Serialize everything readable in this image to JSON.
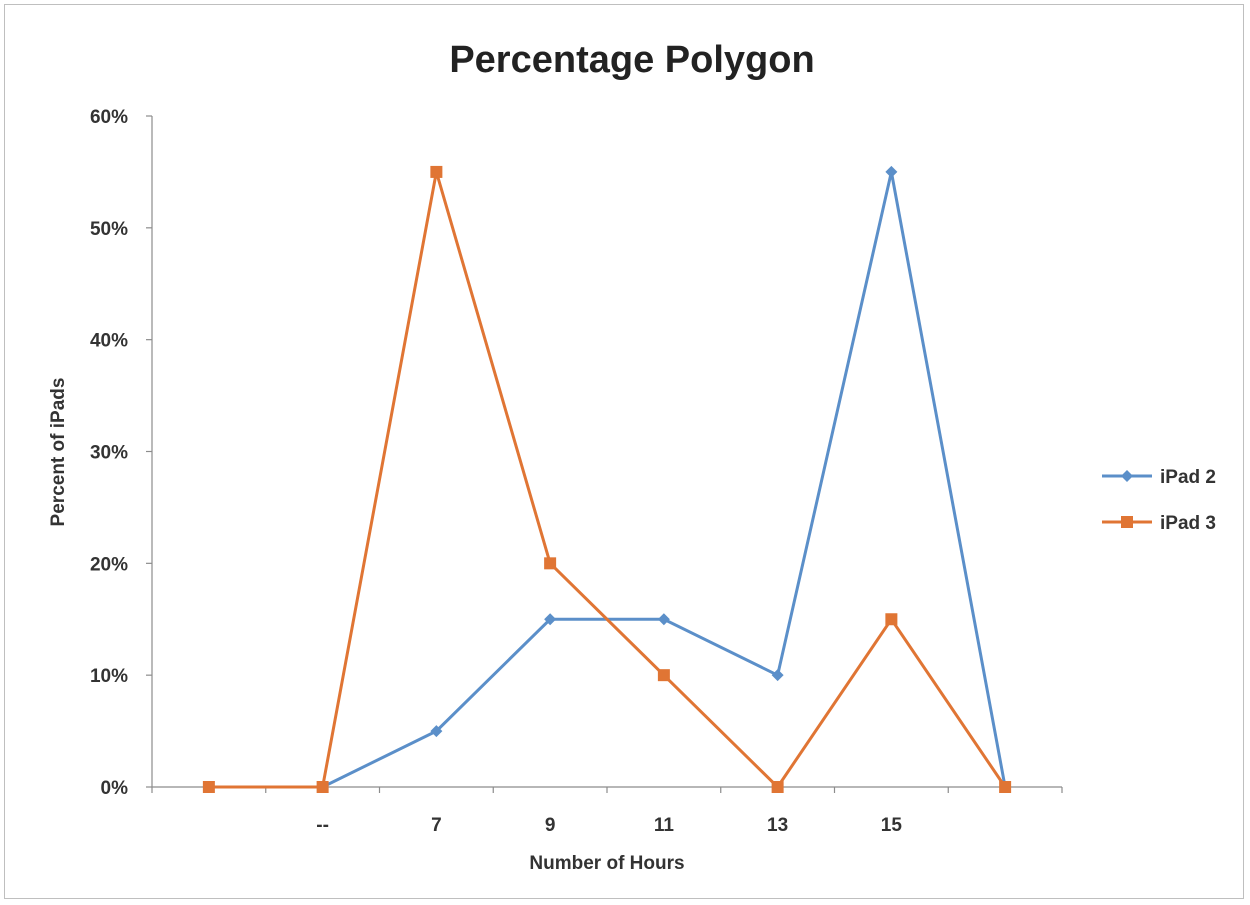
{
  "chart_data": {
    "type": "line",
    "title": "Percentage Polygon",
    "xlabel": "Number of Hours",
    "ylabel": "Percent of iPads",
    "categories": [
      "",
      "--",
      "7",
      "9",
      "11",
      "13",
      "15",
      ""
    ],
    "ylim": [
      0,
      60
    ],
    "yticks": [
      0,
      10,
      20,
      30,
      40,
      50,
      60
    ],
    "ytick_format": "%",
    "grid": false,
    "legend_position": "right",
    "series": [
      {
        "name": "iPad 2",
        "color": "#5b8fc9",
        "marker": "diamond",
        "values": [
          null,
          0,
          5,
          15,
          15,
          10,
          55,
          0
        ]
      },
      {
        "name": "iPad 3",
        "color": "#e07534",
        "marker": "square",
        "values": [
          0,
          0,
          55,
          20,
          10,
          0,
          15,
          0
        ]
      }
    ]
  }
}
